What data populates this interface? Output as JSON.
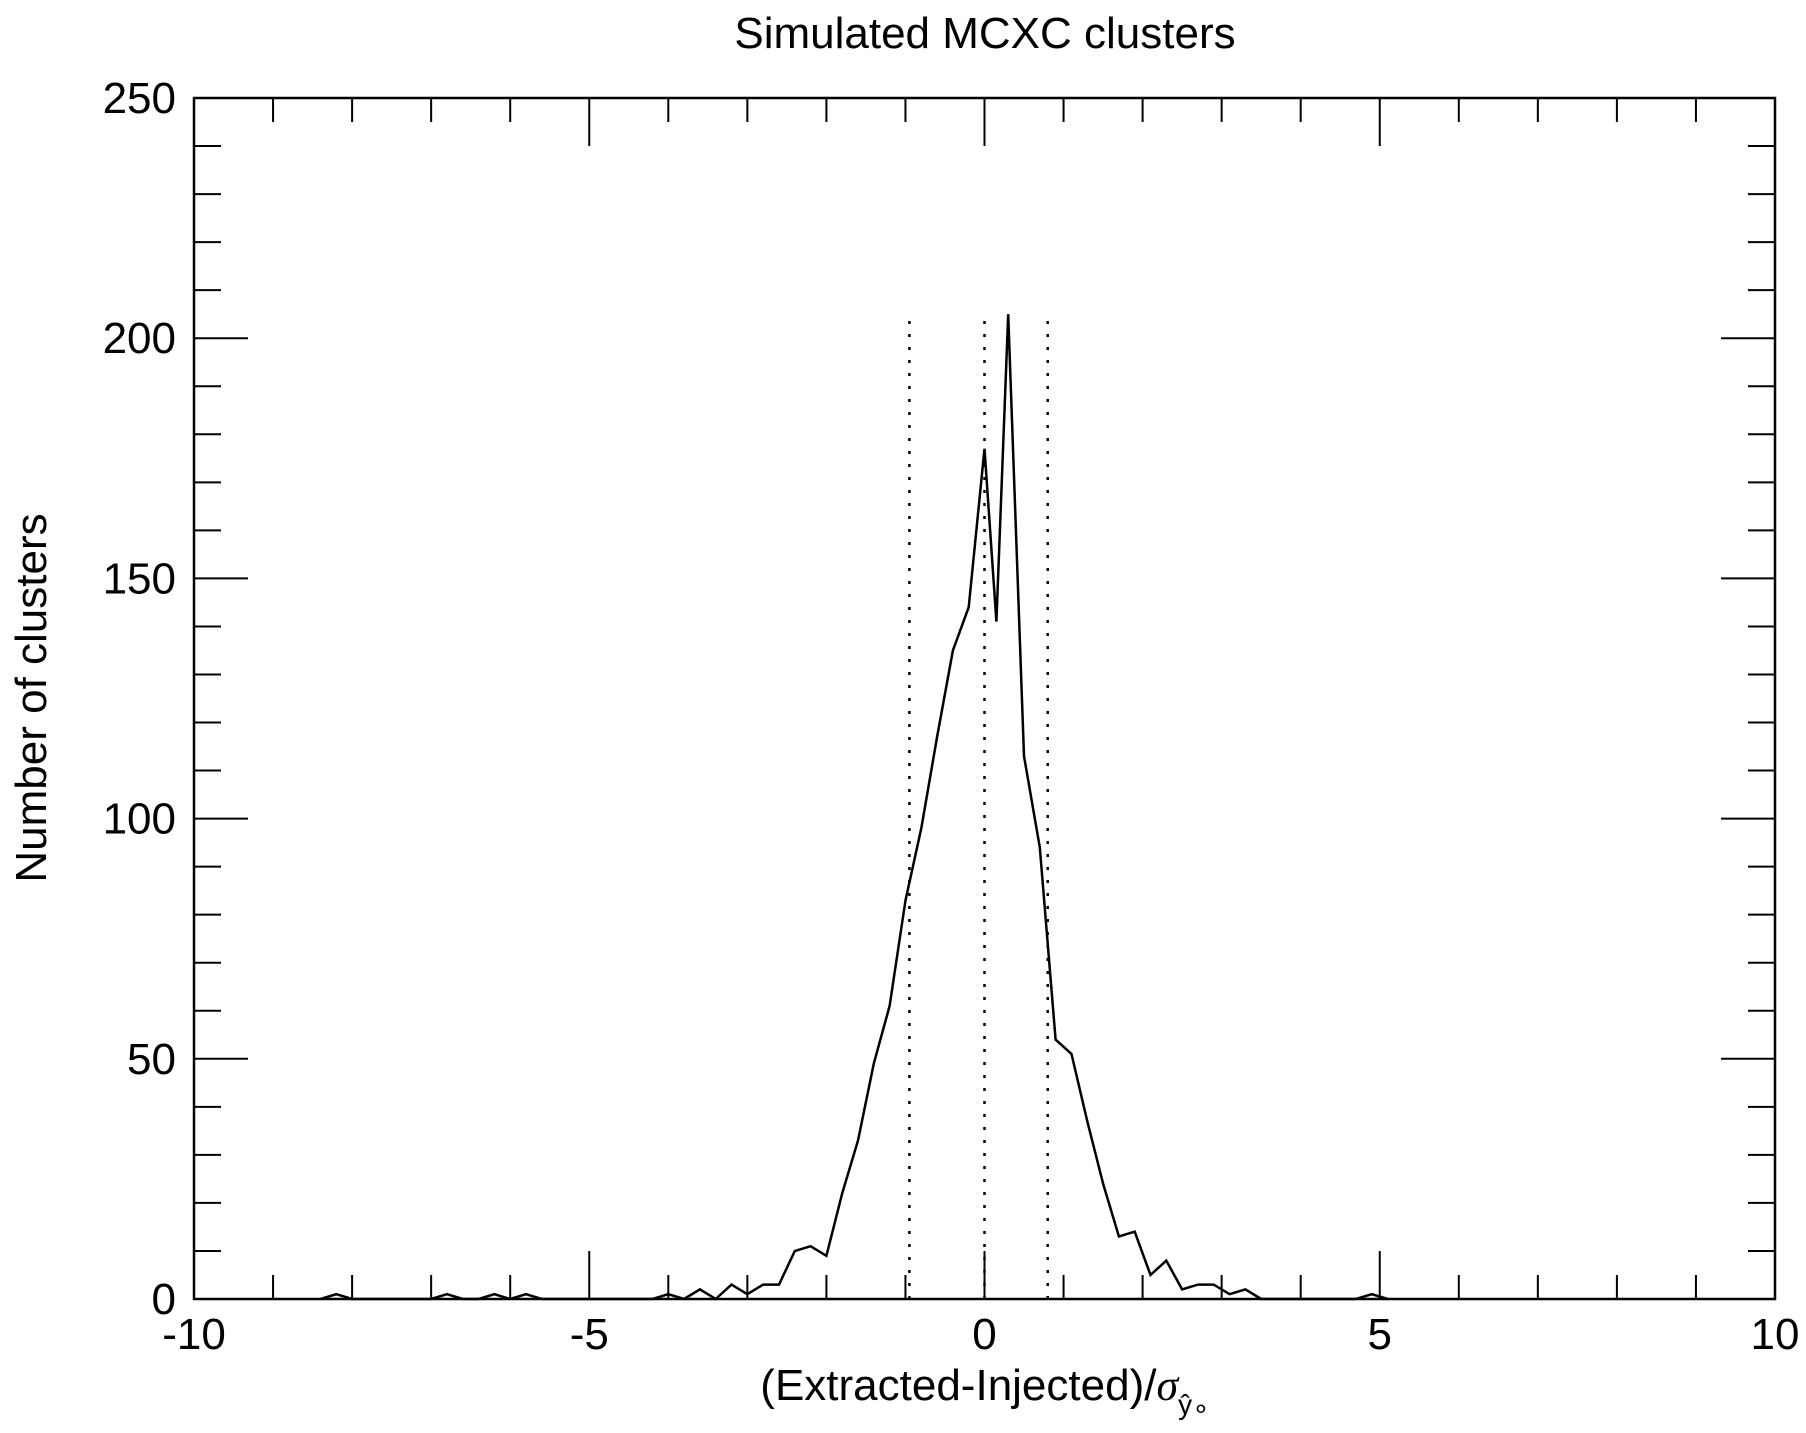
{
  "chart_data": {
    "type": "line",
    "title": "Simulated MCXC clusters",
    "xlabel": "(Extracted-Injected)/",
    "xlabel_symbol": "σ",
    "xlabel_subscript": "ŷ",
    "xlabel_subsubscript": "∘",
    "ylabel": "Number of clusters",
    "xlim": [
      -10,
      10
    ],
    "ylim": [
      0,
      250
    ],
    "xticks": [
      -10,
      -5,
      0,
      5,
      10
    ],
    "xtick_labels": [
      "-10",
      "-5",
      "0",
      "5",
      "10"
    ],
    "yticks": [
      0,
      50,
      100,
      150,
      200,
      250
    ],
    "ytick_labels": [
      "0",
      "50",
      "100",
      "150",
      "200",
      "250"
    ],
    "x_minor_step": 1,
    "y_minor_step": 10,
    "grid": false,
    "series": [
      {
        "style": "solid",
        "color": "#000000",
        "x": [
          -8.4,
          -8.2,
          -8.0,
          -7.8,
          -7.6,
          -7.4,
          -7.2,
          -7.0,
          -6.8,
          -6.6,
          -6.4,
          -6.2,
          -6.0,
          -5.8,
          -5.6,
          -5.4,
          -5.2,
          -5.0,
          -4.8,
          -4.6,
          -4.4,
          -4.2,
          -4.0,
          -3.8,
          -3.6,
          -3.4,
          -3.2,
          -3.0,
          -2.8,
          -2.6,
          -2.4,
          -2.2,
          -2.0,
          -1.8,
          -1.6,
          -1.4,
          -1.2,
          -1.0,
          -0.8,
          -0.6,
          -0.4,
          -0.2,
          0.0,
          0.15,
          0.3,
          0.5,
          0.7,
          0.9,
          1.1,
          1.3,
          1.5,
          1.7,
          1.9,
          2.1,
          2.3,
          2.5,
          2.7,
          2.9,
          3.1,
          3.3,
          3.5,
          3.7,
          3.9,
          4.1,
          4.3,
          4.5,
          4.7,
          4.9,
          5.1
        ],
        "y": [
          0,
          1,
          0,
          0,
          0,
          0,
          0,
          0,
          1,
          0,
          0,
          1,
          0,
          1,
          0,
          0,
          0,
          0,
          0,
          0,
          0,
          0,
          1,
          0,
          2,
          0,
          3,
          1,
          3,
          3,
          10,
          11,
          9,
          22,
          33,
          49,
          61,
          83,
          98,
          117,
          135,
          144,
          177,
          141,
          205,
          113,
          94,
          54,
          51,
          37,
          24,
          13,
          14,
          5,
          8,
          2,
          3,
          3,
          1,
          2,
          0,
          0,
          0,
          0,
          0,
          0,
          0,
          1,
          0
        ]
      }
    ],
    "vlines": [
      {
        "x": -0.95,
        "style": "dotted",
        "ymax": 205
      },
      {
        "x": 0.0,
        "style": "dotted",
        "ymax": 205
      },
      {
        "x": 0.8,
        "style": "dotted",
        "ymax": 205
      }
    ]
  }
}
